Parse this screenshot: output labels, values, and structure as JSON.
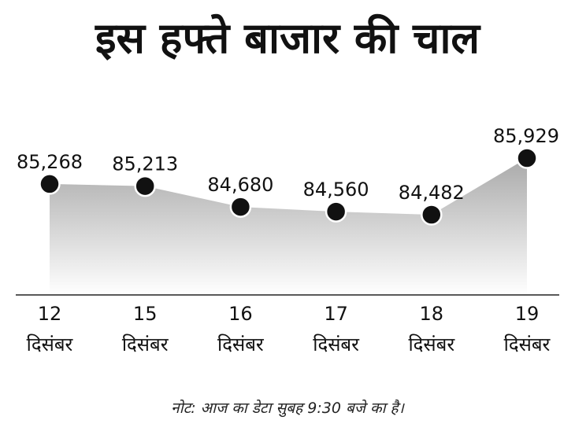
{
  "title": "इस हफ्ते बाजार की चाल",
  "footnote": "नोट: आज का डेटा सुबह 9:30 बजे का है।",
  "colors": {
    "text": "#111111",
    "marker": "#111111",
    "marker_outline": "#ffffff",
    "area_top": "#a9a9a9",
    "area_bottom": "#ffffff",
    "axis": "#222222"
  },
  "chart_data": {
    "type": "area",
    "title": "इस हफ्ते बाजार की चाल",
    "xlabel": "",
    "ylabel": "",
    "x_days": [
      "12",
      "15",
      "16",
      "17",
      "18",
      "19"
    ],
    "x_month": [
      "दिसंबर",
      "दिसंबर",
      "दिसंबर",
      "दिसंबर",
      "दिसंबर",
      "दिसंबर"
    ],
    "values": [
      85268,
      85213,
      84680,
      84560,
      84482,
      85929
    ],
    "value_labels": [
      "85,268",
      "85,213",
      "84,680",
      "84,560",
      "84,482",
      "85,929"
    ],
    "grid": false,
    "legend": "none"
  }
}
